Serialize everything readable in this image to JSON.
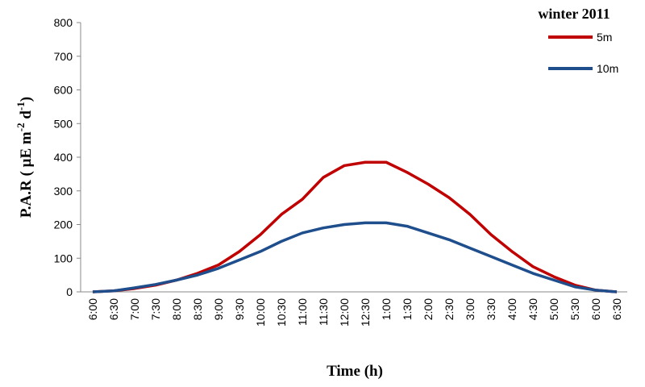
{
  "chart_data": {
    "type": "line",
    "legend_title": "winter 2011",
    "x_label": "Time (h)",
    "y_label": [
      "P.A.R ( µE  m",
      "-2",
      " d",
      "-1",
      ")"
    ],
    "categories": [
      "6:00",
      "6:30",
      "7:00",
      "7:30",
      "8:00",
      "8:30",
      "9:00",
      "9:30",
      "10:00",
      "10:30",
      "11:00",
      "11:30",
      "12:00",
      "12:30",
      "1:00",
      "1:30",
      "2:00",
      "2:30",
      "3:00",
      "3:30",
      "4:00",
      "4:30",
      "5:00",
      "5:30",
      "6:00",
      "6:30"
    ],
    "series": [
      {
        "name": "5m",
        "color": "#c00000",
        "values": [
          0,
          3,
          10,
          20,
          35,
          55,
          80,
          120,
          170,
          230,
          275,
          340,
          375,
          385,
          385,
          355,
          320,
          280,
          230,
          170,
          120,
          75,
          45,
          20,
          5,
          0
        ]
      },
      {
        "name": "10m",
        "color": "#1f4e8c",
        "values": [
          0,
          3,
          12,
          22,
          35,
          50,
          70,
          95,
          120,
          150,
          175,
          190,
          200,
          205,
          205,
          195,
          175,
          155,
          130,
          105,
          80,
          55,
          35,
          15,
          5,
          0
        ]
      }
    ],
    "ylim": [
      0,
      800
    ],
    "yticks": [
      0,
      100,
      200,
      300,
      400,
      500,
      600,
      700,
      800
    ],
    "legend": "top-right"
  }
}
